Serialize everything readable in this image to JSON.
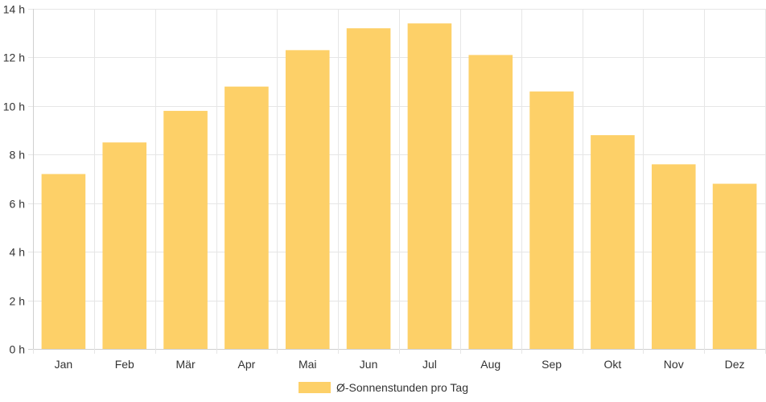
{
  "chart_data": {
    "type": "bar",
    "categories": [
      "Jan",
      "Feb",
      "Mär",
      "Apr",
      "Mai",
      "Jun",
      "Jul",
      "Aug",
      "Sep",
      "Okt",
      "Nov",
      "Dez"
    ],
    "series": [
      {
        "name": "Ø-Sonnenstunden pro Tag",
        "values": [
          7.2,
          8.5,
          9.8,
          10.8,
          12.3,
          13.2,
          13.4,
          12.1,
          10.6,
          8.8,
          7.6,
          6.8
        ],
        "color": "#fdd068"
      }
    ],
    "y_ticks": [
      "0 h",
      "2 h",
      "4 h",
      "6 h",
      "8 h",
      "10 h",
      "12 h",
      "14 h"
    ],
    "ylim": [
      0,
      14
    ],
    "grid": true,
    "legend_position": "bottom",
    "title": "",
    "xlabel": "",
    "ylabel": ""
  }
}
